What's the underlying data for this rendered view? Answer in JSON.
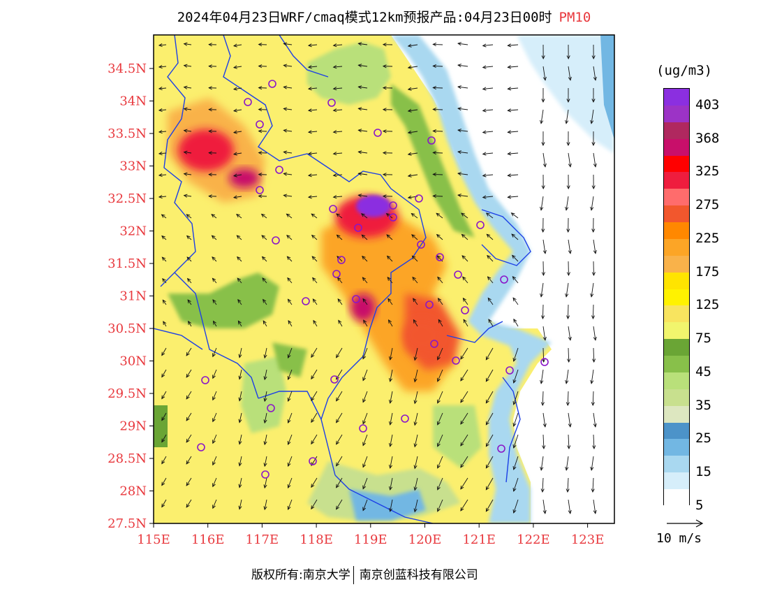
{
  "title": {
    "main": "2024年04月23日WRF/cmaq模式12km预报产品:04月23日00时",
    "product": "PM10",
    "product_color": "#e8383d"
  },
  "map": {
    "lat_labels": [
      "34.5N",
      "34N",
      "33.5N",
      "33N",
      "32.5N",
      "32N",
      "31.5N",
      "31N",
      "30.5N",
      "30N",
      "29.5N",
      "29N",
      "28.5N",
      "28N",
      "27.5N"
    ],
    "lon_labels": [
      "115E",
      "116E",
      "117E",
      "118E",
      "119E",
      "120E",
      "121E",
      "122E",
      "123E"
    ],
    "axis_label_color": "#e8383d",
    "boundary_color": "#1c3fe6",
    "station_marker_color": "#8a16c8",
    "shade_hotspots": [
      {
        "name": "north-west hotspot",
        "level": "225-275"
      },
      {
        "name": "nanjing hotspot",
        "level": ">400"
      },
      {
        "name": "central south hotspot",
        "level": "225-275"
      },
      {
        "name": "hangzhou bay hotspot",
        "level": "175-225"
      }
    ]
  },
  "legend": {
    "unit": "(ug/m3)",
    "labels": [
      "403",
      "368",
      "325",
      "275",
      "225",
      "175",
      "125",
      "75",
      "45",
      "35",
      "25",
      "15",
      "5"
    ],
    "colors": [
      "#8b2fe0",
      "#9c33c6",
      "#b0285f",
      "#c80f6a",
      "#ff0000",
      "#ef1d3e",
      "#ff6c6c",
      "#f2572d",
      "#ff8800",
      "#fca526",
      "#f9b24a",
      "#ffe400",
      "#fff200",
      "#f8e45f",
      "#f1f56d",
      "#6aa535",
      "#88c04a",
      "#b9e07a",
      "#c8e08e",
      "#dde7c0",
      "#4c93c9",
      "#72b7e3",
      "#a9d8f0",
      "#d6eefa",
      "#ffffff"
    ],
    "vector_label": "10 m/s"
  },
  "footer": {
    "owner": "版权所有:南京大学",
    "company": "南京创蓝科技有限公司"
  }
}
